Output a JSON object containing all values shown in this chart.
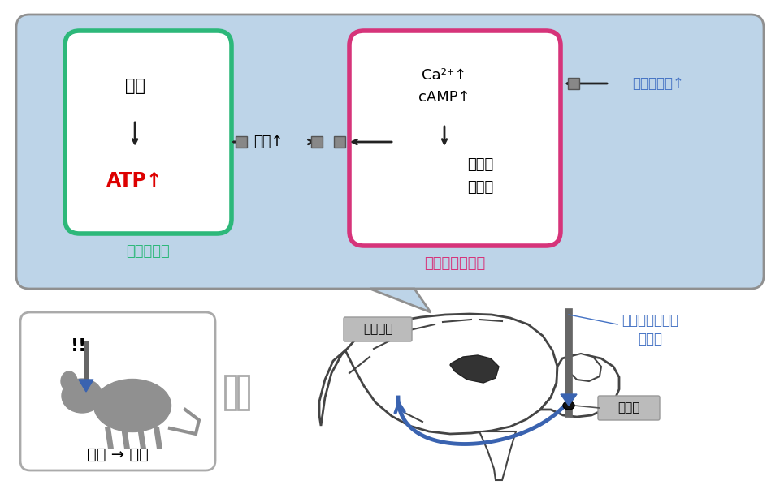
{
  "bg_color": "#bdd4e8",
  "top_box_border": "#909090",
  "green_box_color": "#2db87a",
  "pink_box_color": "#d6347a",
  "excitatory_label": "興奮性神経",
  "astrocyte_label": "アストロサイト",
  "excitatory_color": "#2db87a",
  "astrocyte_color": "#d6347a",
  "atp_text": "ATP↑",
  "atp_color": "#dd0000",
  "lactate_text": "乳酸",
  "lactate_up_text": "乳酸↑",
  "ca_text": "Ca²⁺↑",
  "camp_text": "cAMP↑",
  "glycogen_line1": "グリコ",
  "glycogen_line2": "－ゲン",
  "serotonin_text": "セロトニン↑",
  "serotonin_color": "#4472c4",
  "serotonin_nerve_line1": "セロトニン神経",
  "serotonin_nerve_line2": "光刺激",
  "serotonin_nerve_color": "#4472c4",
  "daino_text": "大脳皮質",
  "hosen_text": "縫線核",
  "sleep_text": "睡眠 → 覚醒",
  "arrow_color": "#222222",
  "sq_color": "#888888",
  "sq_edge": "#555555",
  "blue_arrow_color": "#3a63b0",
  "label_box_color": "#bbbbbb",
  "label_box_edge": "#999999"
}
